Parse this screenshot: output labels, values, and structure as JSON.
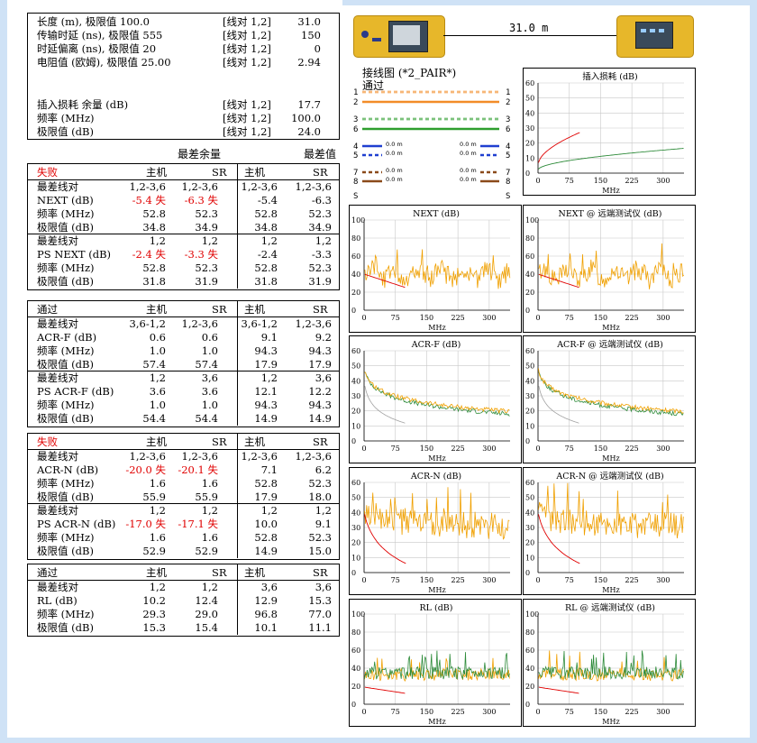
{
  "summary": {
    "rows": [
      {
        "label": "长度 (m), 极限值 100.0",
        "pair": "[线对 1,2]",
        "value": "31.0"
      },
      {
        "label": "传输时延 (ns), 极限值 555",
        "pair": "[线对 1,2]",
        "value": "150"
      },
      {
        "label": "时延偏离 (ns), 极限值 20",
        "pair": "[线对 1,2]",
        "value": "0"
      },
      {
        "label": "电阻值 (欧姆), 极限值 25.00",
        "pair": "[线对 1,2]",
        "value": "2.94"
      }
    ],
    "rows2": [
      {
        "label": "插入损耗 余量 (dB)",
        "pair": "[线对 1,2]",
        "value": "17.7"
      },
      {
        "label": "频率 (MHz)",
        "pair": "[线对 1,2]",
        "value": "100.0"
      },
      {
        "label": "极限值 (dB)",
        "pair": "[线对 1,2]",
        "value": "24.0"
      }
    ]
  },
  "header": {
    "worst_margin": "最差余量",
    "worst_value": "最差值"
  },
  "tables": [
    {
      "status": "失败",
      "status_red": true,
      "cols": [
        "主机",
        "SR",
        "主机",
        "SR"
      ],
      "groups": [
        {
          "rows": [
            {
              "label": "最差线对",
              "vals": [
                "1,2-3,6",
                "1,2-3,6",
                "1,2-3,6",
                "1,2-3,6"
              ],
              "red": [
                false,
                false,
                false,
                false
              ]
            },
            {
              "label": "NEXT (dB)",
              "vals": [
                "-5.4 失",
                "-6.3 失",
                "-5.4",
                "-6.3"
              ],
              "red": [
                true,
                true,
                false,
                false
              ]
            },
            {
              "label": "频率 (MHz)",
              "vals": [
                "52.8",
                "52.3",
                "52.8",
                "52.3"
              ],
              "red": [
                false,
                false,
                false,
                false
              ]
            },
            {
              "label": "极限值 (dB)",
              "vals": [
                "34.8",
                "34.9",
                "34.8",
                "34.9"
              ],
              "red": [
                false,
                false,
                false,
                false
              ]
            }
          ]
        },
        {
          "rows": [
            {
              "label": "最差线对",
              "vals": [
                "1,2",
                "1,2",
                "1,2",
                "1,2"
              ],
              "red": [
                false,
                false,
                false,
                false
              ]
            },
            {
              "label": "PS NEXT (dB)",
              "vals": [
                "-2.4 失",
                "-3.3 失",
                "-2.4",
                "-3.3"
              ],
              "red": [
                true,
                true,
                false,
                false
              ]
            },
            {
              "label": "频率 (MHz)",
              "vals": [
                "52.8",
                "52.3",
                "52.8",
                "52.3"
              ],
              "red": [
                false,
                false,
                false,
                false
              ]
            },
            {
              "label": "极限值 (dB)",
              "vals": [
                "31.8",
                "31.9",
                "31.8",
                "31.9"
              ],
              "red": [
                false,
                false,
                false,
                false
              ]
            }
          ]
        }
      ]
    },
    {
      "status": "通过",
      "status_red": false,
      "cols": [
        "主机",
        "SR",
        "主机",
        "SR"
      ],
      "groups": [
        {
          "rows": [
            {
              "label": "最差线对",
              "vals": [
                "3,6-1,2",
                "1,2-3,6",
                "3,6-1,2",
                "1,2-3,6"
              ],
              "red": [
                false,
                false,
                false,
                false
              ]
            },
            {
              "label": "ACR-F (dB)",
              "vals": [
                "0.6",
                "0.6",
                "9.1",
                "9.2"
              ],
              "red": [
                false,
                false,
                false,
                false
              ]
            },
            {
              "label": "频率 (MHz)",
              "vals": [
                "1.0",
                "1.0",
                "94.3",
                "94.3"
              ],
              "red": [
                false,
                false,
                false,
                false
              ]
            },
            {
              "label": "极限值 (dB)",
              "vals": [
                "57.4",
                "57.4",
                "17.9",
                "17.9"
              ],
              "red": [
                false,
                false,
                false,
                false
              ]
            }
          ]
        },
        {
          "rows": [
            {
              "label": "最差线对",
              "vals": [
                "1,2",
                "3,6",
                "1,2",
                "3,6"
              ],
              "red": [
                false,
                false,
                false,
                false
              ]
            },
            {
              "label": "PS ACR-F (dB)",
              "vals": [
                "3.6",
                "3.6",
                "12.1",
                "12.2"
              ],
              "red": [
                false,
                false,
                false,
                false
              ]
            },
            {
              "label": "频率 (MHz)",
              "vals": [
                "1.0",
                "1.0",
                "94.3",
                "94.3"
              ],
              "red": [
                false,
                false,
                false,
                false
              ]
            },
            {
              "label": "极限值 (dB)",
              "vals": [
                "54.4",
                "54.4",
                "14.9",
                "14.9"
              ],
              "red": [
                false,
                false,
                false,
                false
              ]
            }
          ]
        }
      ]
    },
    {
      "status": "失败",
      "status_red": true,
      "cols": [
        "主机",
        "SR",
        "主机",
        "SR"
      ],
      "groups": [
        {
          "rows": [
            {
              "label": "最差线对",
              "vals": [
                "1,2-3,6",
                "1,2-3,6",
                "1,2-3,6",
                "1,2-3,6"
              ],
              "red": [
                false,
                false,
                false,
                false
              ]
            },
            {
              "label": "ACR-N (dB)",
              "vals": [
                "-20.0 失",
                "-20.1 失",
                "7.1",
                "6.2"
              ],
              "red": [
                true,
                true,
                false,
                false
              ]
            },
            {
              "label": "频率 (MHz)",
              "vals": [
                "1.6",
                "1.6",
                "52.8",
                "52.3"
              ],
              "red": [
                false,
                false,
                false,
                false
              ]
            },
            {
              "label": "极限值 (dB)",
              "vals": [
                "55.9",
                "55.9",
                "17.9",
                "18.0"
              ],
              "red": [
                false,
                false,
                false,
                false
              ]
            }
          ]
        },
        {
          "rows": [
            {
              "label": "最差线对",
              "vals": [
                "1,2",
                "1,2",
                "1,2",
                "1,2"
              ],
              "red": [
                false,
                false,
                false,
                false
              ]
            },
            {
              "label": "PS ACR-N (dB)",
              "vals": [
                "-17.0 失",
                "-17.1 失",
                "10.0",
                "9.1"
              ],
              "red": [
                true,
                true,
                false,
                false
              ]
            },
            {
              "label": "频率 (MHz)",
              "vals": [
                "1.6",
                "1.6",
                "52.8",
                "52.3"
              ],
              "red": [
                false,
                false,
                false,
                false
              ]
            },
            {
              "label": "极限值 (dB)",
              "vals": [
                "52.9",
                "52.9",
                "14.9",
                "15.0"
              ],
              "red": [
                false,
                false,
                false,
                false
              ]
            }
          ]
        }
      ]
    },
    {
      "status": "通过",
      "status_red": false,
      "cols": [
        "主机",
        "SR",
        "主机",
        "SR"
      ],
      "groups": [
        {
          "rows": [
            {
              "label": "最差线对",
              "vals": [
                "1,2",
                "1,2",
                "3,6",
                "3,6"
              ],
              "red": [
                false,
                false,
                false,
                false
              ]
            },
            {
              "label": "RL (dB)",
              "vals": [
                "10.2",
                "12.4",
                "12.9",
                "15.3"
              ],
              "red": [
                false,
                false,
                false,
                false
              ]
            },
            {
              "label": "频率 (MHz)",
              "vals": [
                "29.3",
                "29.0",
                "96.8",
                "77.0"
              ],
              "red": [
                false,
                false,
                false,
                false
              ]
            },
            {
              "label": "极限值 (dB)",
              "vals": [
                "15.3",
                "15.4",
                "10.1",
                "11.1"
              ],
              "red": [
                false,
                false,
                false,
                false
              ]
            }
          ]
        }
      ]
    }
  ],
  "link": {
    "length": "31.0 m"
  },
  "wiremap": {
    "title": "接线图 (*2_PAIR*)",
    "status": "通过",
    "pairs": [
      {
        "l": "1",
        "r": "1",
        "color": "#f28c28",
        "dashed": true
      },
      {
        "l": "2",
        "r": "2",
        "color": "#f28c28",
        "dashed": false
      },
      {
        "l": "3",
        "r": "3",
        "color": "#2e9e2e",
        "dashed": true
      },
      {
        "l": "6",
        "r": "6",
        "color": "#2e9e2e",
        "dashed": false
      },
      {
        "l": "4",
        "r": "4",
        "color": "#1f3fd0",
        "dashed": false,
        "short": true,
        "ml": "0.0 m",
        "mr": "0.0 m"
      },
      {
        "l": "5",
        "r": "5",
        "color": "#1f3fd0",
        "dashed": true,
        "short": true,
        "ml": "0.0 m",
        "mr": "0.0 m"
      },
      {
        "l": "7",
        "r": "7",
        "color": "#8b4a1a",
        "dashed": true,
        "short": true,
        "ml": "0.0 m",
        "mr": "0.0 m"
      },
      {
        "l": "8",
        "r": "8",
        "color": "#8b4a1a",
        "dashed": false,
        "short": true,
        "ml": "0.0 m",
        "mr": "0.0 m"
      }
    ],
    "shield_l": "S",
    "shield_r": "S"
  },
  "chart_data": [
    {
      "id": "il",
      "type": "line",
      "title": "插入损耗 (dB)",
      "xlabel": "MHz",
      "ylim": [
        0,
        60
      ],
      "xlim": [
        0,
        350
      ],
      "yticks": [
        "60",
        "50",
        "40",
        "30",
        "20",
        "10",
        "0"
      ],
      "xticks": [
        "0",
        "75",
        "150",
        "225",
        "300"
      ],
      "kind": "il"
    },
    {
      "id": "next",
      "type": "line",
      "title": "NEXT (dB)",
      "xlabel": "MHz",
      "ylim": [
        0,
        100
      ],
      "xlim": [
        0,
        350
      ],
      "yticks": [
        "100",
        "80",
        "60",
        "40",
        "20",
        "0"
      ],
      "xticks": [
        "0",
        "75",
        "150",
        "225",
        "300"
      ],
      "kind": "next"
    },
    {
      "id": "next_r",
      "type": "line",
      "title": "NEXT @ 远端测试仪 (dB)",
      "xlabel": "MHz",
      "ylim": [
        0,
        100
      ],
      "xlim": [
        0,
        350
      ],
      "yticks": [
        "100",
        "80",
        "60",
        "40",
        "20",
        "0"
      ],
      "xticks": [
        "0",
        "75",
        "150",
        "225",
        "300"
      ],
      "kind": "next"
    },
    {
      "id": "acrf",
      "type": "line",
      "title": "ACR-F (dB)",
      "xlabel": "MHz",
      "ylim": [
        0,
        60
      ],
      "xlim": [
        0,
        350
      ],
      "yticks": [
        "60",
        "50",
        "40",
        "30",
        "20",
        "10",
        "0"
      ],
      "xticks": [
        "0",
        "75",
        "150",
        "225",
        "300"
      ],
      "kind": "acrf"
    },
    {
      "id": "acrf_r",
      "type": "line",
      "title": "ACR-F @ 远端测试仪 (dB)",
      "xlabel": "MHz",
      "ylim": [
        0,
        60
      ],
      "xlim": [
        0,
        350
      ],
      "yticks": [
        "60",
        "50",
        "40",
        "30",
        "20",
        "10",
        "0"
      ],
      "xticks": [
        "0",
        "75",
        "150",
        "225",
        "300"
      ],
      "kind": "acrf"
    },
    {
      "id": "acrn",
      "type": "line",
      "title": "ACR-N (dB)",
      "xlabel": "MHz",
      "ylim": [
        0,
        60
      ],
      "xlim": [
        0,
        350
      ],
      "yticks": [
        "60",
        "50",
        "40",
        "30",
        "20",
        "10",
        "0"
      ],
      "xticks": [
        "0",
        "75",
        "150",
        "225",
        "300"
      ],
      "kind": "acrn"
    },
    {
      "id": "acrn_r",
      "type": "line",
      "title": "ACR-N @ 远端测试仪 (dB)",
      "xlabel": "MHz",
      "ylim": [
        0,
        60
      ],
      "xlim": [
        0,
        350
      ],
      "yticks": [
        "60",
        "50",
        "40",
        "30",
        "20",
        "10",
        "0"
      ],
      "xticks": [
        "0",
        "75",
        "150",
        "225",
        "300"
      ],
      "kind": "acrn"
    },
    {
      "id": "rl",
      "type": "line",
      "title": "RL (dB)",
      "xlabel": "MHz",
      "ylim": [
        0,
        100
      ],
      "xlim": [
        0,
        350
      ],
      "yticks": [
        "100",
        "80",
        "60",
        "40",
        "20",
        "0"
      ],
      "xticks": [
        "0",
        "75",
        "150",
        "225",
        "300"
      ],
      "kind": "rl"
    },
    {
      "id": "rl_r",
      "type": "line",
      "title": "RL @ 远端测试仪 (dB)",
      "xlabel": "MHz",
      "ylim": [
        0,
        100
      ],
      "xlim": [
        0,
        350
      ],
      "yticks": [
        "100",
        "80",
        "60",
        "40",
        "20",
        "0"
      ],
      "xticks": [
        "0",
        "75",
        "150",
        "225",
        "300"
      ],
      "kind": "rl"
    }
  ],
  "colors": {
    "orange": "#f0a000",
    "green": "#2e8b3a",
    "red": "#e00000",
    "gray": "#a0a0a0",
    "grid": "#c8c8c8"
  }
}
